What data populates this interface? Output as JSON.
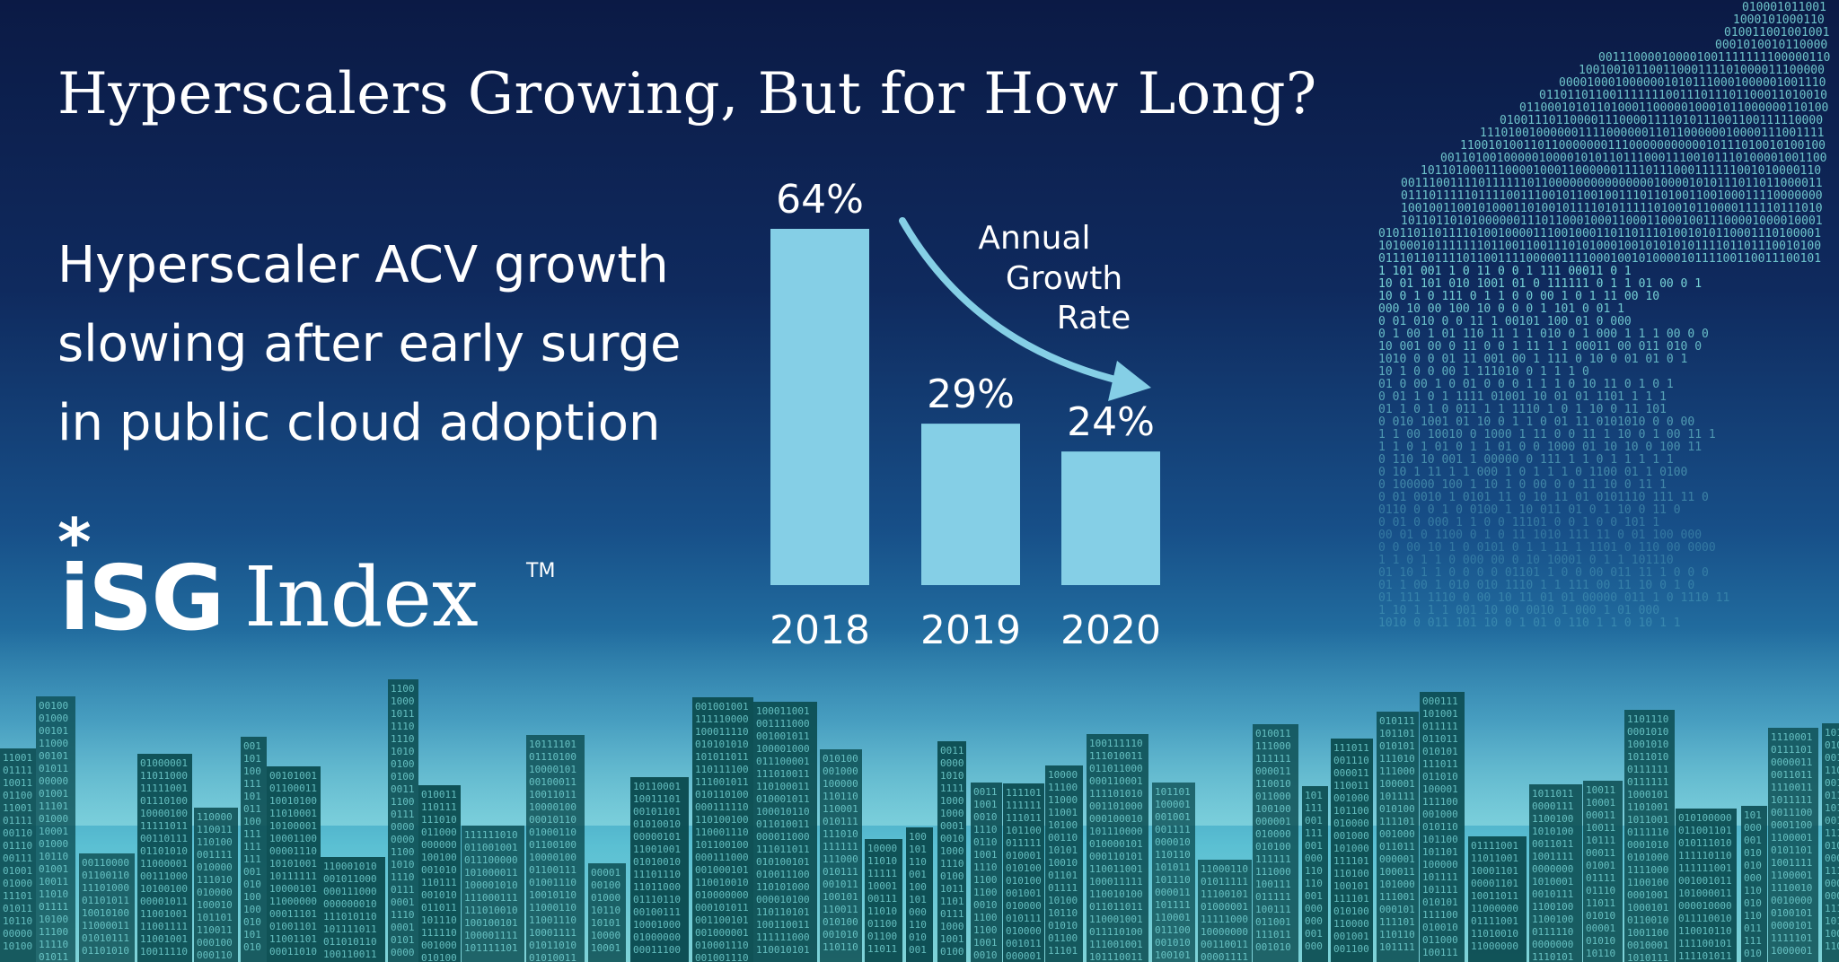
{
  "header": {
    "title": "Hyperscalers Growing, But for How Long?",
    "subtitle_lines": [
      "Hyperscaler ACV growth",
      "slowing after early surge",
      "in public cloud adoption"
    ]
  },
  "logo": {
    "star": "*",
    "isg": "iSG",
    "index": "Index",
    "tm": "TM"
  },
  "colors": {
    "bar": "#85cfe6",
    "text": "#ffffff",
    "arrow": "#85cfe6",
    "building": "#0c4d52",
    "binary": "#7fe0e0"
  },
  "chart_data": {
    "type": "bar",
    "categories": [
      "2018",
      "2019",
      "2020"
    ],
    "values": [
      64,
      29,
      24
    ],
    "value_labels": [
      "64%",
      "29%",
      "24%"
    ],
    "ylim": [
      0,
      64
    ],
    "annotation": [
      "Annual",
      "Growth",
      "Rate"
    ]
  }
}
